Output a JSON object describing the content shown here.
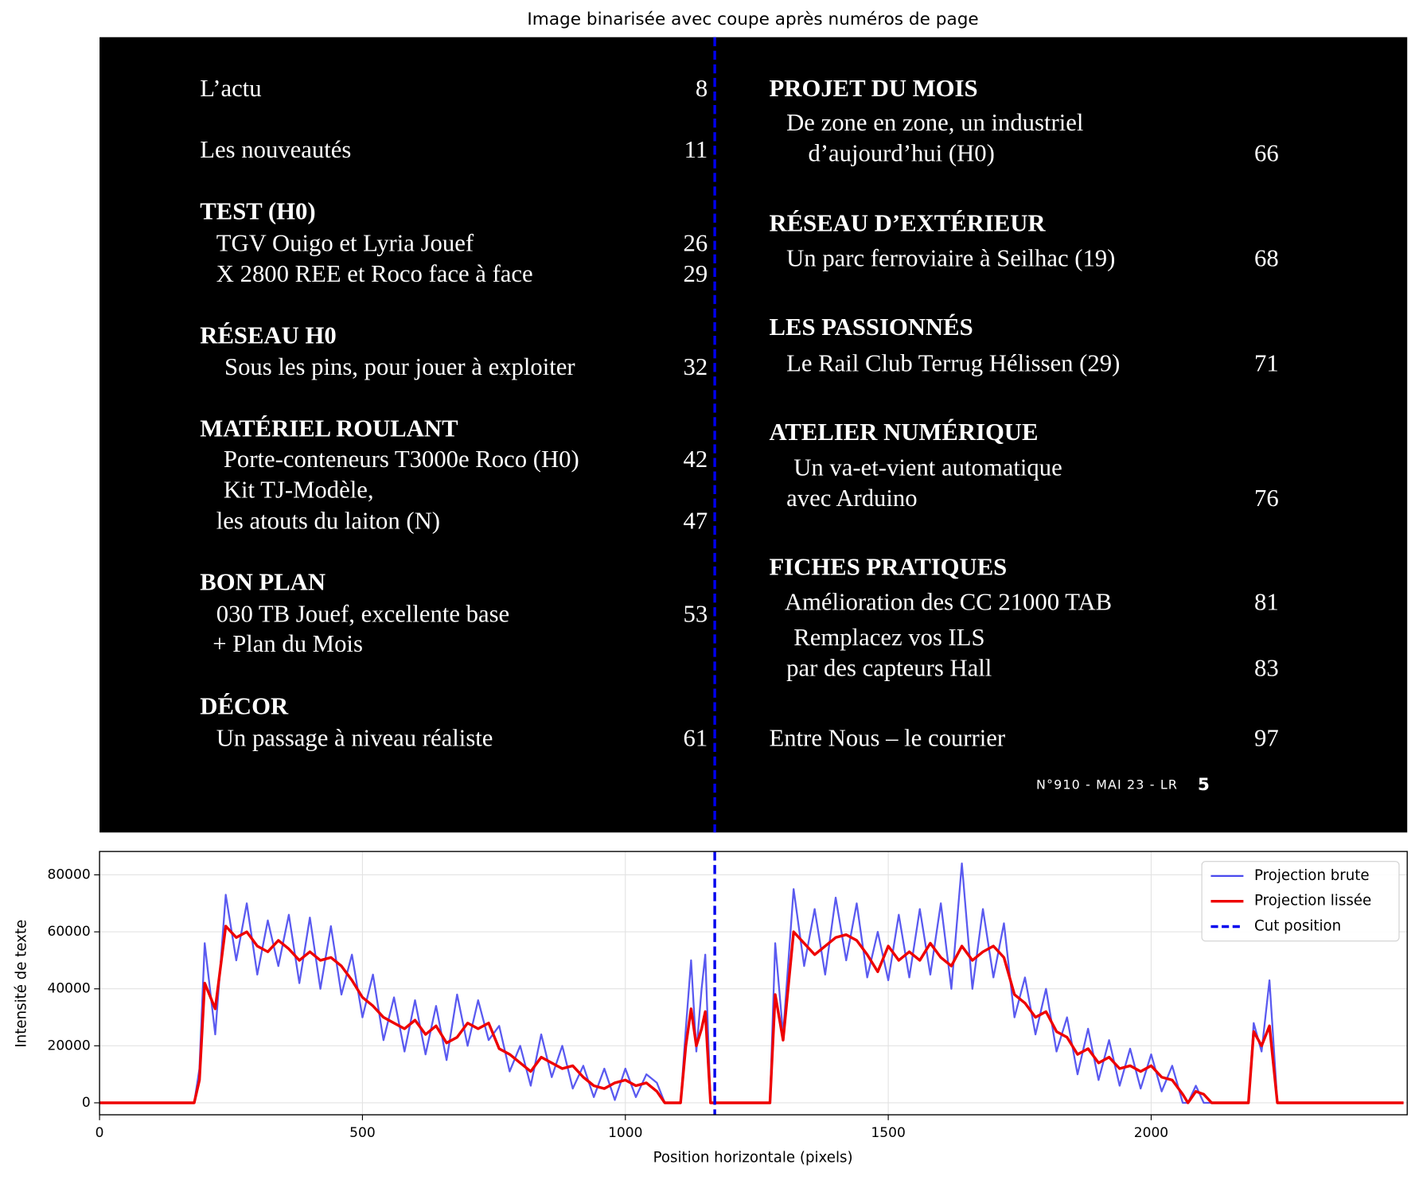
{
  "chart_data": [
    {
      "type": "image",
      "title": "Image binarisée avec coupe après numéros de page",
      "xlim": [
        0,
        2487
      ],
      "cut_x": 1170,
      "cut_color": "#0000ee",
      "left_column": [
        {
          "text": "L’actu",
          "page": 8
        },
        {
          "text": "Les nouveautés",
          "page": 11
        },
        {
          "text": "TEST (H0)",
          "bold": true
        },
        {
          "text": "TGV Ouigo et Lyria Jouef",
          "page": 26
        },
        {
          "text": "X 2800 REE et Roco face à face",
          "page": 29
        },
        {
          "text": "RÉSEAU H0",
          "bold": true
        },
        {
          "text": "Sous les pins, pour jouer à exploiter",
          "page": 32
        },
        {
          "text": "MATÉRIEL ROULANT",
          "bold": true
        },
        {
          "text": "Porte-conteneurs T3000e Roco (H0)",
          "page": 42
        },
        {
          "text": "Kit TJ-Modèle,"
        },
        {
          "text": "les atouts du laiton (N)",
          "page": 47
        },
        {
          "text": "BON PLAN",
          "bold": true
        },
        {
          "text": "030 TB Jouef, excellente base",
          "page": 53
        },
        {
          "text": "+ Plan du Mois"
        },
        {
          "text": "DÉCOR",
          "bold": true
        },
        {
          "text": "Un passage à niveau réaliste",
          "page": 61
        }
      ],
      "right_column": [
        {
          "text": "PROJET DU MOIS",
          "bold": true
        },
        {
          "text": "De zone en zone, un industriel"
        },
        {
          "text": "d’aujourd’hui (H0)",
          "page": 66
        },
        {
          "text": "RÉSEAU D’EXTÉRIEUR",
          "bold": true
        },
        {
          "text": "Un parc ferroviaire à Seilhac (19)",
          "page": 68
        },
        {
          "text": "LES PASSIONNÉS",
          "bold": true
        },
        {
          "text": "Le Rail Club Terrug Hélissen (29)",
          "page": 71
        },
        {
          "text": "ATELIER NUMÉRIQUE",
          "bold": true
        },
        {
          "text": "Un va-et-vient automatique"
        },
        {
          "text": "avec Arduino",
          "page": 76
        },
        {
          "text": "FICHES PRATIQUES",
          "bold": true
        },
        {
          "text": "Amélioration des CC 21000 TAB",
          "page": 81
        },
        {
          "text": "Remplacez vos ILS"
        },
        {
          "text": "par des capteurs Hall",
          "page": 83
        },
        {
          "text": "Entre Nous – le courrier",
          "page": 97
        }
      ],
      "footer": "N°910 - MAI 23 - LR",
      "footer_page": 5
    },
    {
      "type": "line",
      "x_label": "Position horizontale (pixels)",
      "y_label": "Intensité de texte",
      "xlim": [
        0,
        2487
      ],
      "ylim": [
        -4200,
        88200
      ],
      "xticks": [
        0,
        500,
        1000,
        1500,
        2000
      ],
      "yticks": [
        0,
        20000,
        40000,
        60000,
        80000
      ],
      "grid": true,
      "legend": "upper right",
      "x": [
        0,
        180,
        190,
        200,
        220,
        240,
        260,
        280,
        300,
        320,
        340,
        360,
        380,
        400,
        420,
        440,
        460,
        480,
        500,
        520,
        540,
        560,
        580,
        600,
        620,
        640,
        660,
        680,
        700,
        720,
        740,
        760,
        780,
        800,
        820,
        840,
        860,
        880,
        900,
        920,
        940,
        960,
        980,
        1000,
        1020,
        1040,
        1060,
        1075,
        1105,
        1115,
        1125,
        1135,
        1145,
        1152,
        1162,
        1275,
        1285,
        1300,
        1320,
        1340,
        1360,
        1380,
        1400,
        1420,
        1440,
        1460,
        1480,
        1500,
        1520,
        1540,
        1560,
        1580,
        1600,
        1620,
        1640,
        1660,
        1680,
        1700,
        1720,
        1740,
        1760,
        1780,
        1800,
        1820,
        1840,
        1860,
        1880,
        1900,
        1920,
        1940,
        1960,
        1980,
        2000,
        2020,
        2040,
        2060,
        2070,
        2085,
        2100,
        2115,
        2185,
        2195,
        2210,
        2225,
        2240,
        2480
      ],
      "series": [
        {
          "name": "Projection brute",
          "color": "#4848ee",
          "width": 2,
          "values": [
            0,
            0,
            12000,
            56000,
            24000,
            73000,
            50000,
            70000,
            45000,
            64000,
            48000,
            66000,
            42000,
            65000,
            40000,
            62000,
            38000,
            52000,
            30000,
            45000,
            22000,
            37000,
            18000,
            36000,
            17000,
            34000,
            15000,
            38000,
            20000,
            36000,
            22000,
            27000,
            11000,
            20000,
            6000,
            24000,
            9000,
            20000,
            5000,
            13000,
            2000,
            12000,
            1000,
            12000,
            2000,
            10000,
            7000,
            0,
            0,
            26000,
            50000,
            18000,
            40000,
            52000,
            0,
            0,
            56000,
            24000,
            75000,
            48000,
            68000,
            45000,
            72000,
            50000,
            70000,
            44000,
            60000,
            43000,
            66000,
            44000,
            68000,
            45000,
            70000,
            40000,
            84000,
            40000,
            68000,
            44000,
            63000,
            30000,
            44000,
            24000,
            40000,
            18000,
            30000,
            10000,
            26000,
            8000,
            22000,
            6000,
            19000,
            5000,
            17000,
            4000,
            13000,
            0,
            0,
            6000,
            0,
            0,
            0,
            28000,
            18000,
            43000,
            0,
            0
          ]
        },
        {
          "name": "Projection lissée",
          "color": "#ee0000",
          "width": 3,
          "values": [
            0,
            0,
            8000,
            42000,
            33000,
            62000,
            58000,
            60000,
            55000,
            53000,
            57000,
            54000,
            50000,
            53000,
            50000,
            51000,
            48000,
            43000,
            37000,
            34000,
            30000,
            28000,
            26000,
            29000,
            24000,
            27000,
            21000,
            23000,
            28000,
            26000,
            28000,
            19000,
            17000,
            14000,
            11000,
            16000,
            14000,
            12000,
            13000,
            9000,
            6000,
            5000,
            7000,
            8000,
            6000,
            7000,
            4000,
            0,
            0,
            20000,
            33000,
            20000,
            26000,
            32000,
            0,
            0,
            38000,
            22000,
            60000,
            56000,
            52000,
            55000,
            58000,
            59000,
            57000,
            52000,
            46000,
            55000,
            50000,
            53000,
            50000,
            56000,
            51000,
            48000,
            55000,
            50000,
            53000,
            55000,
            51000,
            38000,
            35000,
            30000,
            32000,
            25000,
            23000,
            17000,
            19000,
            14000,
            16000,
            12000,
            13000,
            11000,
            13000,
            9000,
            8000,
            3000,
            0,
            4000,
            3000,
            0,
            0,
            25000,
            20000,
            27000,
            0,
            0
          ]
        }
      ],
      "cut_line": {
        "name": "Cut position",
        "x": 1170,
        "color": "#0000ee"
      }
    }
  ]
}
